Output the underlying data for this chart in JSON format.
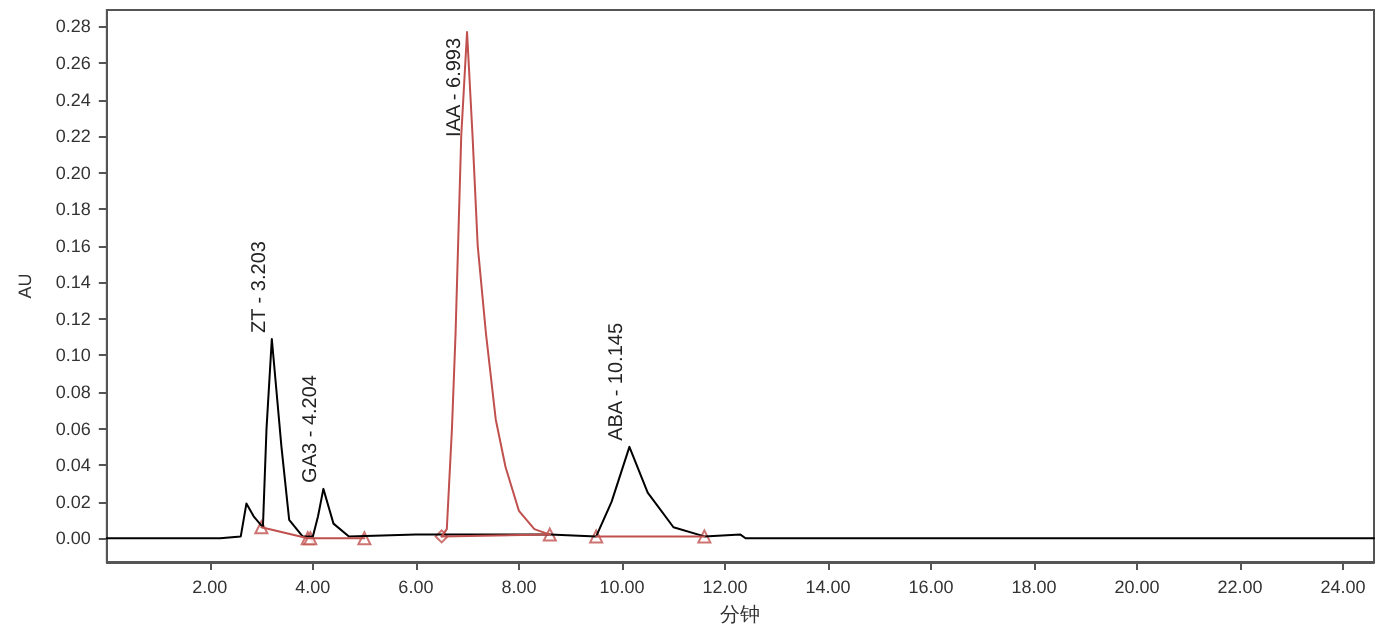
{
  "chart_data": {
    "type": "line",
    "xlabel": "分钟",
    "ylabel": "AU",
    "xlim": [
      0,
      24.6
    ],
    "ylim": [
      -0.013,
      0.289
    ],
    "xticks": [
      {
        "value": 2,
        "label": "2.00"
      },
      {
        "value": 4,
        "label": "4.00"
      },
      {
        "value": 6,
        "label": "6.00"
      },
      {
        "value": 8,
        "label": "8.00"
      },
      {
        "value": 10,
        "label": "10.00"
      },
      {
        "value": 12,
        "label": "12.00"
      },
      {
        "value": 14,
        "label": "14.00"
      },
      {
        "value": 16,
        "label": "16.00"
      },
      {
        "value": 18,
        "label": "18.00"
      },
      {
        "value": 20,
        "label": "20.00"
      },
      {
        "value": 22,
        "label": "22.00"
      },
      {
        "value": 24,
        "label": "24.00"
      }
    ],
    "yticks": [
      {
        "value": 0,
        "label": "0.00"
      },
      {
        "value": 0.02,
        "label": "0.02"
      },
      {
        "value": 0.04,
        "label": "0.04"
      },
      {
        "value": 0.06,
        "label": "0.06"
      },
      {
        "value": 0.08,
        "label": "0.08"
      },
      {
        "value": 0.1,
        "label": "0.10"
      },
      {
        "value": 0.12,
        "label": "0.12"
      },
      {
        "value": 0.14,
        "label": "0.14"
      },
      {
        "value": 0.16,
        "label": "0.16"
      },
      {
        "value": 0.18,
        "label": "0.18"
      },
      {
        "value": 0.2,
        "label": "0.20"
      },
      {
        "value": 0.22,
        "label": "0.22"
      },
      {
        "value": 0.24,
        "label": "0.24"
      },
      {
        "value": 0.26,
        "label": "0.26"
      },
      {
        "value": 0.28,
        "label": "0.28"
      }
    ],
    "grid": false,
    "line_style": "solid",
    "series": [
      {
        "color": "#000000",
        "x": [
          0,
          2.2,
          2.6,
          2.71,
          2.85,
          3.03,
          3.1,
          3.203,
          3.39,
          3.54,
          3.8,
          4.0,
          4.1,
          4.204,
          4.4,
          4.7,
          6.0,
          6.5,
          8.6,
          9.5,
          9.8,
          10.145,
          10.5,
          11.0,
          11.6,
          12.3,
          12.4,
          24.6
        ],
        "values": [
          0,
          0,
          0.001,
          0.019,
          0.012,
          0.006,
          0.06,
          0.109,
          0.05,
          0.01,
          0.001,
          0.001,
          0.012,
          0.027,
          0.008,
          0.001,
          0.002,
          0.002,
          0.002,
          0.001,
          0.02,
          0.05,
          0.025,
          0.006,
          0.001,
          0.002,
          0,
          0
        ]
      },
      {
        "color": "#c0504d",
        "x": [
          6.5,
          6.6,
          6.7,
          6.77,
          6.88,
          6.993,
          7.1,
          7.2,
          7.36,
          7.55,
          7.74,
          8.0,
          8.3,
          8.6
        ],
        "values": [
          0.001,
          0.005,
          0.06,
          0.112,
          0.22,
          0.277,
          0.22,
          0.16,
          0.112,
          0.065,
          0.039,
          0.015,
          0.005,
          0.002
        ]
      },
      {
        "color": "#c0504d",
        "x": [
          3.0,
          3.9,
          3.95,
          5.0
        ],
        "values": [
          0.006,
          0,
          0,
          0
        ]
      },
      {
        "color": "#c0504d",
        "x": [
          6.5,
          8.6
        ],
        "values": [
          0.001,
          0.002
        ]
      },
      {
        "color": "#c0504d",
        "x": [
          9.5,
          11.6
        ],
        "values": [
          0.001,
          0.001
        ]
      },
      {
        "type": "scatter",
        "marker": "triangle",
        "color": "#c0504d",
        "x": [
          3.0,
          3.9,
          3.95,
          5.0,
          8.6,
          9.5,
          11.6
        ],
        "values": [
          0.006,
          0,
          0,
          0,
          0.002,
          0.001,
          0.001
        ]
      },
      {
        "type": "scatter",
        "marker": "diamond",
        "color": "#c0504d",
        "x": [
          6.5
        ],
        "values": [
          0.001
        ]
      }
    ],
    "annotations": [
      {
        "text": "ZT - 3.203",
        "x": 3.203,
        "y": 0.109
      },
      {
        "text": "GA3 - 4.204",
        "x": 4.204,
        "y": 0.027
      },
      {
        "text": "IAA - 6.993",
        "x": 6.993,
        "y": 0.277
      },
      {
        "text": "ABA - 10.145",
        "x": 10.145,
        "y": 0.05
      }
    ]
  }
}
